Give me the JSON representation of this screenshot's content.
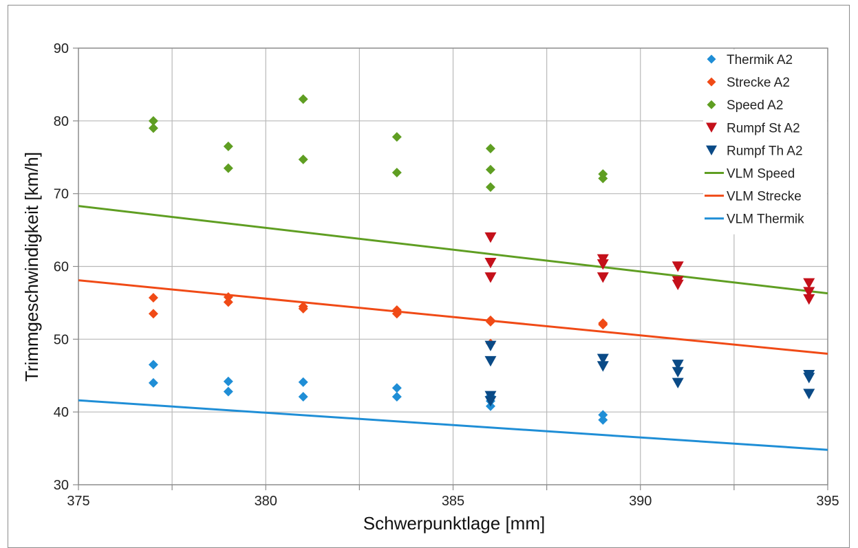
{
  "chart_data": {
    "type": "scatter",
    "title": "",
    "xlabel": "Schwerpunktlage [mm]",
    "ylabel": "Trimmgeschwindigkeit [km/h]",
    "xlim": [
      375,
      395
    ],
    "ylim": [
      30,
      90
    ],
    "x_ticks": [
      375,
      380,
      385,
      390,
      395
    ],
    "y_ticks": [
      30,
      40,
      50,
      60,
      70,
      80,
      90
    ],
    "x_tick_labels": [
      "375",
      "380",
      "385",
      "390",
      "395"
    ],
    "y_tick_labels": [
      "30",
      "40",
      "50",
      "60",
      "70",
      "80",
      "90"
    ],
    "x_minor_grid": [
      377.5,
      382.5,
      387.5,
      392.5
    ],
    "grid": true,
    "legend_position": "top-right",
    "series": [
      {
        "name": "Thermik A2",
        "marker": "diamond",
        "color": "#1f8ed6",
        "points": [
          [
            377,
            46.5
          ],
          [
            377,
            44
          ],
          [
            379,
            44.2
          ],
          [
            379,
            42.8
          ],
          [
            381,
            44.1
          ],
          [
            381,
            42.1
          ],
          [
            383.5,
            43.3
          ],
          [
            383.5,
            42.1
          ],
          [
            386,
            42.2
          ],
          [
            386,
            41.5
          ],
          [
            386,
            40.8
          ],
          [
            389,
            39.6
          ],
          [
            389,
            38.9
          ]
        ]
      },
      {
        "name": "Strecke A2",
        "marker": "diamond",
        "color": "#f04a16",
        "points": [
          [
            377,
            55.7
          ],
          [
            377,
            53.5
          ],
          [
            379,
            55.8
          ],
          [
            379,
            55.1
          ],
          [
            381,
            54.5
          ],
          [
            381,
            54.2
          ],
          [
            383.5,
            54.0
          ],
          [
            383.5,
            53.5
          ],
          [
            386,
            52.6
          ],
          [
            386,
            52.4
          ],
          [
            386,
            49.4
          ],
          [
            389,
            52.2
          ],
          [
            389,
            52.0
          ]
        ]
      },
      {
        "name": "Speed A2",
        "marker": "diamond",
        "color": "#5f9e22",
        "points": [
          [
            377,
            80
          ],
          [
            377,
            79
          ],
          [
            379,
            76.5
          ],
          [
            379,
            73.5
          ],
          [
            381,
            83
          ],
          [
            381,
            74.7
          ],
          [
            383.5,
            77.8
          ],
          [
            383.5,
            72.9
          ],
          [
            386,
            76.2
          ],
          [
            386,
            73.3
          ],
          [
            386,
            70.9
          ],
          [
            389,
            72.7
          ],
          [
            389,
            72.1
          ]
        ]
      },
      {
        "name": "Rumpf St A2",
        "marker": "triangle-down",
        "color": "#c4101a",
        "points": [
          [
            386,
            64
          ],
          [
            386,
            60.5
          ],
          [
            386,
            58.5
          ],
          [
            389,
            61
          ],
          [
            389,
            60.3
          ],
          [
            389,
            58.5
          ],
          [
            391,
            60
          ],
          [
            391,
            58
          ],
          [
            391,
            57.5
          ],
          [
            394.5,
            57.7
          ],
          [
            394.5,
            56.5
          ],
          [
            394.5,
            55.5
          ]
        ]
      },
      {
        "name": "Rumpf Th A2",
        "marker": "triangle-down",
        "color": "#0a4a86",
        "points": [
          [
            386,
            49.1
          ],
          [
            386,
            47
          ],
          [
            386,
            42.2
          ],
          [
            386,
            41.5
          ],
          [
            389,
            47.3
          ],
          [
            389,
            46.3
          ],
          [
            391,
            46.5
          ],
          [
            391,
            45.5
          ],
          [
            391,
            44
          ],
          [
            394.5,
            45.1
          ],
          [
            394.5,
            44.7
          ],
          [
            394.5,
            42.5
          ]
        ]
      },
      {
        "name": "VLM Speed",
        "type": "line",
        "color": "#5f9e22",
        "points": [
          [
            375,
            68.3
          ],
          [
            395,
            56.3
          ]
        ]
      },
      {
        "name": "VLM Strecke",
        "type": "line",
        "color": "#f04a16",
        "points": [
          [
            375,
            58.1
          ],
          [
            395,
            48.0
          ]
        ]
      },
      {
        "name": "VLM Thermik",
        "type": "line",
        "color": "#1f8ed6",
        "points": [
          [
            375,
            41.6
          ],
          [
            395,
            34.8
          ]
        ]
      }
    ]
  }
}
